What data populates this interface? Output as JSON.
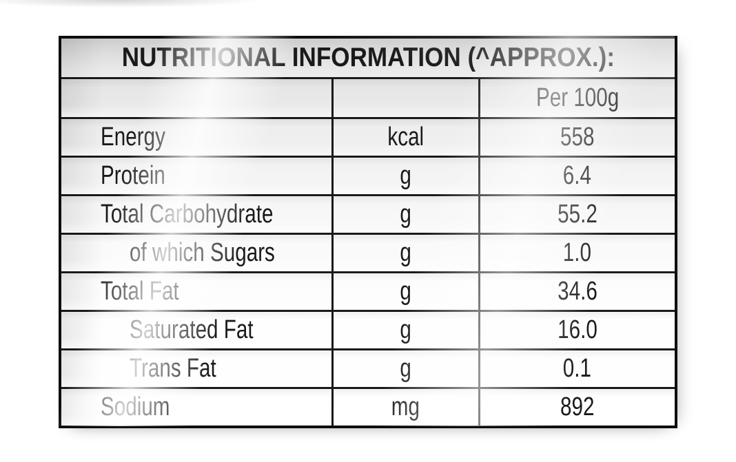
{
  "label": {
    "title": "NUTRITIONAL INFORMATION (^APPROX.):",
    "per_column_header": "Per 100g",
    "rows": [
      {
        "nutrient": "Energy",
        "unit": "kcal",
        "value": "558",
        "sub": false
      },
      {
        "nutrient": "Protein",
        "unit": "g",
        "value": "6.4",
        "sub": false
      },
      {
        "nutrient": "Total Carbohydrate",
        "unit": "g",
        "value": "55.2",
        "sub": false
      },
      {
        "nutrient": "of which Sugars",
        "unit": "g",
        "value": "1.0",
        "sub": true
      },
      {
        "nutrient": "Total Fat",
        "unit": "g",
        "value": "34.6",
        "sub": false
      },
      {
        "nutrient": "Saturated Fat",
        "unit": "g",
        "value": "16.0",
        "sub": true
      },
      {
        "nutrient": "Trans Fat",
        "unit": "g",
        "value": "0.1",
        "sub": true
      },
      {
        "nutrient": "Sodium",
        "unit": "mg",
        "value": "892",
        "sub": false
      }
    ],
    "colors": {
      "border": "#191919",
      "text": "#1a1a1a",
      "label_sheet_top": "#d7d7d7",
      "label_sheet_bottom": "#ffffff",
      "page_background": "#ffffff"
    }
  }
}
